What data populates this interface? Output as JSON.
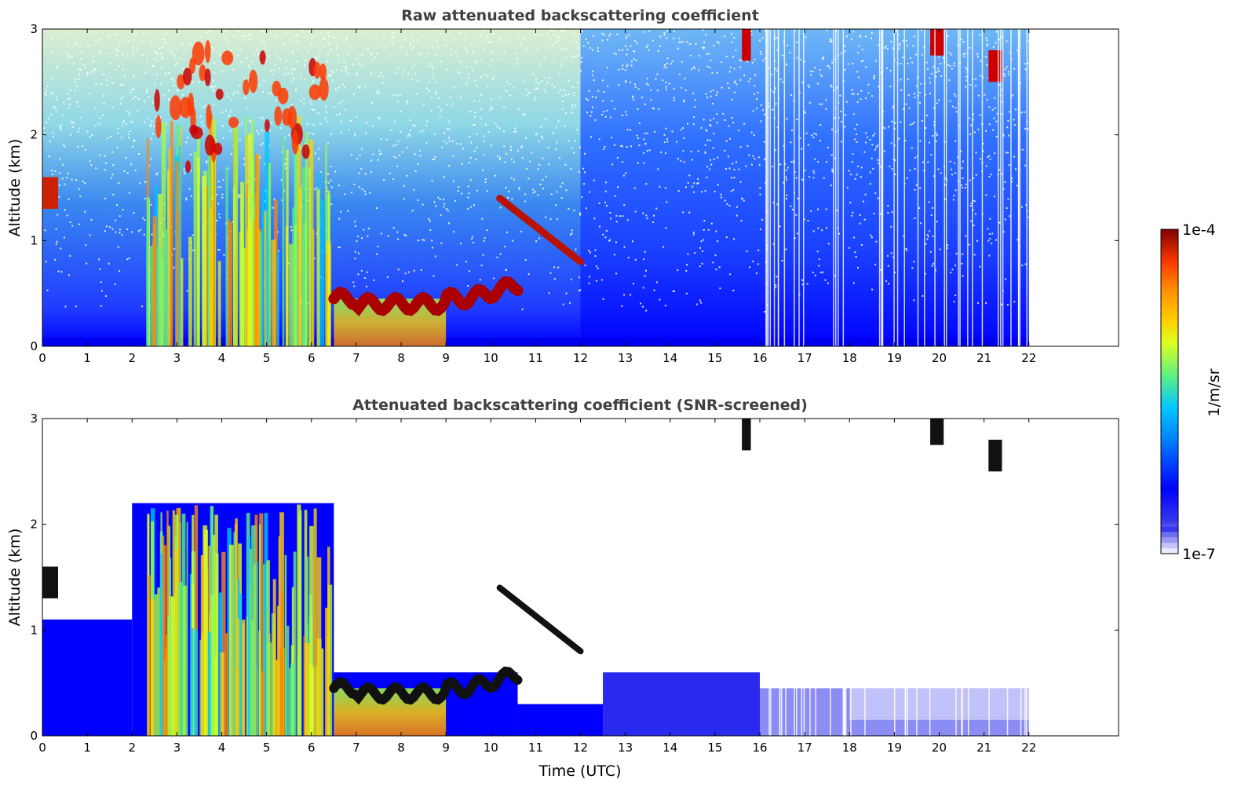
{
  "chart_data": [
    {
      "type": "heatmap",
      "title": "Raw attenuated backscattering coefficient",
      "xlabel": "",
      "ylabel": "Altitude (km)",
      "xlim": [
        0,
        24
      ],
      "ylim": [
        0,
        3
      ],
      "xticks": [
        "0",
        "1",
        "2",
        "3",
        "4",
        "5",
        "6",
        "7",
        "8",
        "9",
        "10",
        "11",
        "12",
        "13",
        "14",
        "15",
        "16",
        "17",
        "18",
        "19",
        "20",
        "21",
        "22"
      ],
      "yticks": [
        "0",
        "1",
        "2",
        "3"
      ],
      "data_end_time": 22,
      "features": [
        {
          "kind": "aerosol_plume",
          "start": 2.3,
          "end": 6.4,
          "top": 2.2
        },
        {
          "kind": "boundary_layer_top",
          "start": 6.5,
          "end": 10.6,
          "altitude": 0.45
        },
        {
          "kind": "cloud_layer_descending",
          "start": 10.2,
          "end": 12.0,
          "from_altitude": 1.4,
          "to_altitude": 0.9
        },
        {
          "kind": "cloud_low",
          "start": 0.0,
          "end": 0.35,
          "altitude": 1.45
        },
        {
          "kind": "cloud_cirrus",
          "start": 15.6,
          "end": 15.8,
          "altitude": 2.85
        },
        {
          "kind": "cloud_cirrus",
          "start": 19.8,
          "end": 20.1,
          "altitude": 2.9
        },
        {
          "kind": "cloud_cirrus",
          "start": 21.1,
          "end": 21.4,
          "altitude": 2.65
        }
      ]
    },
    {
      "type": "heatmap",
      "title": "Attenuated backscattering coefficient (SNR-screened)",
      "xlabel": "Time (UTC)",
      "ylabel": "Altitude (km)",
      "xlim": [
        0,
        24
      ],
      "ylim": [
        0,
        3
      ],
      "xticks": [
        "0",
        "1",
        "2",
        "3",
        "4",
        "5",
        "6",
        "7",
        "8",
        "9",
        "10",
        "11",
        "12",
        "13",
        "14",
        "15",
        "16",
        "17",
        "18",
        "19",
        "20",
        "21",
        "22"
      ],
      "yticks": [
        "0",
        "1",
        "2",
        "3"
      ],
      "data_end_time": 22,
      "screened_top": [
        {
          "start": 0,
          "end": 2,
          "altitude": 1.1
        },
        {
          "start": 2,
          "end": 6.5,
          "altitude": 2.2
        },
        {
          "start": 6.5,
          "end": 10.6,
          "altitude": 0.6
        },
        {
          "start": 10.6,
          "end": 12.5,
          "altitude": 0.3
        },
        {
          "start": 12.5,
          "end": 16,
          "altitude": 0.6
        },
        {
          "start": 16,
          "end": 22,
          "altitude": 0.45
        }
      ]
    }
  ],
  "colorbar": {
    "label": "1/m/sr",
    "max_label": "1e-4",
    "min_label": "1e-7",
    "colors": [
      "#e9e9ff",
      "#c4c4fa",
      "#9a9af5",
      "#6f6ff2",
      "#3737ee",
      "#0000ff",
      "#0032ff",
      "#0080ff",
      "#00c8ff",
      "#20e0d0",
      "#60f080",
      "#a0ff40",
      "#ddff20",
      "#ffd000",
      "#ff8800",
      "#ff3800",
      "#cc0000",
      "#800000"
    ]
  }
}
